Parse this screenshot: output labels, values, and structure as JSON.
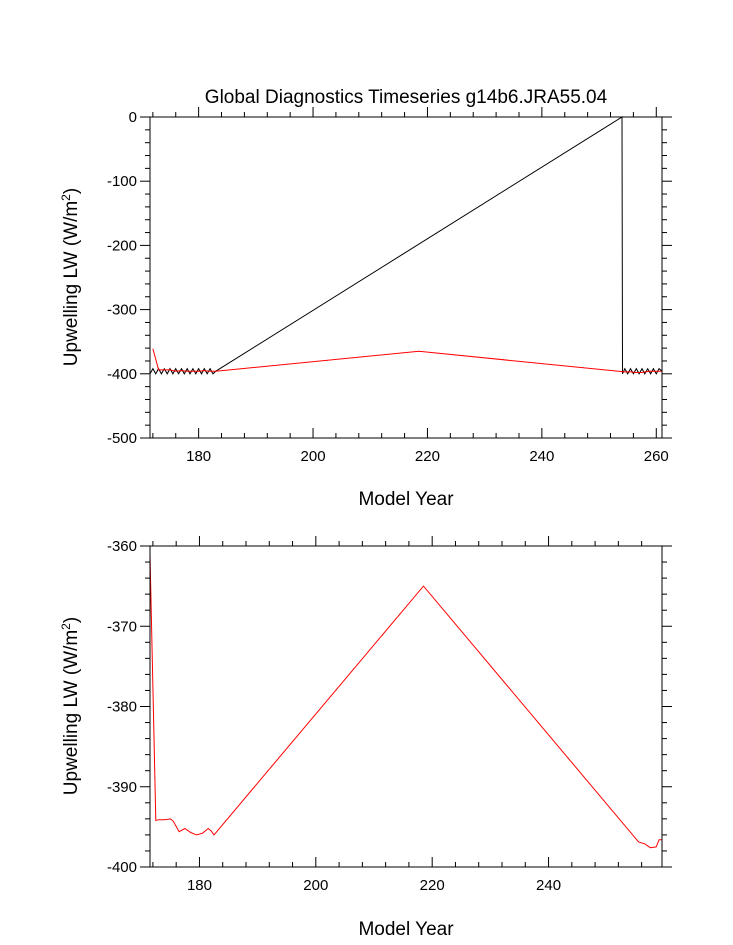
{
  "chart_data": [
    {
      "type": "line",
      "title": "Global Diagnostics Timeseries g14b6.JRA55.04",
      "xlabel": "Model Year",
      "ylabel_main": "Upwelling LW (W/m",
      "ylabel_sup": "2",
      "ylabel_close": ")",
      "xlim": [
        171.5,
        261
      ],
      "ylim": [
        -500,
        0
      ],
      "x_ticks": [
        180,
        200,
        220,
        240,
        260
      ],
      "x_tick_labels": [
        "180",
        "200",
        "220",
        "240",
        "260"
      ],
      "y_ticks": [
        0,
        -100,
        -200,
        -300,
        -400,
        -500
      ],
      "y_tick_labels": [
        "0",
        "-100",
        "-200",
        "-300",
        "-400",
        "-500"
      ],
      "series": [
        {
          "name": "black",
          "color": "#000000",
          "x": [
            171.5,
            172.0,
            172.5,
            173.0,
            173.5,
            174.0,
            174.5,
            175.0,
            175.5,
            176.0,
            176.5,
            177.0,
            177.5,
            178.0,
            178.5,
            179.0,
            179.5,
            180.0,
            180.5,
            181.0,
            181.5,
            182.0,
            182.5,
            183.0,
            254.0,
            254.1,
            254.5,
            255.0,
            255.5,
            256.0,
            256.5,
            257.0,
            257.5,
            258.0,
            258.5,
            259.0,
            259.5,
            260.0,
            260.5,
            261.0
          ],
          "y": [
            -400,
            -392,
            -400,
            -392,
            -400,
            -392,
            -400,
            -392,
            -400,
            -392,
            -400,
            -392,
            -400,
            -392,
            -400,
            -392,
            -400,
            -392,
            -400,
            -392,
            -400,
            -392,
            -400,
            -396,
            0,
            -400,
            -392,
            -400,
            -392,
            -400,
            -392,
            -400,
            -392,
            -400,
            -392,
            -400,
            -392,
            -400,
            -392,
            -396
          ]
        },
        {
          "name": "red",
          "color": "#ff0000",
          "x": [
            172.0,
            173.0,
            174.0,
            175.0,
            176.0,
            177.0,
            178.0,
            179.0,
            180.0,
            181.0,
            182.0,
            183.0,
            218.5,
            254.5,
            255.5,
            256.5,
            257.5,
            258.0,
            259.0,
            260.0,
            261.0
          ],
          "y": [
            -361,
            -394,
            -394,
            -394,
            -396,
            -395,
            -396,
            -396,
            -396,
            -395,
            -396,
            -396,
            -365,
            -397,
            -397,
            -398,
            -398,
            -397,
            -396,
            -396,
            -396
          ]
        }
      ]
    },
    {
      "type": "line",
      "title": "",
      "xlabel": "Model Year",
      "ylabel_main": "Upwelling LW (W/m",
      "ylabel_sup": "2",
      "ylabel_close": ")",
      "xlim": [
        171.5,
        259.5
      ],
      "ylim": [
        -400,
        -360
      ],
      "x_ticks": [
        180,
        200,
        220,
        240
      ],
      "x_tick_labels": [
        "180",
        "200",
        "220",
        "240"
      ],
      "y_ticks": [
        -360,
        -370,
        -380,
        -390,
        -400
      ],
      "y_tick_labels": [
        "-360",
        "-370",
        "-380",
        "-390",
        "-400"
      ],
      "series": [
        {
          "name": "red",
          "color": "#ff0000",
          "x": [
            171.5,
            172.5,
            173.0,
            174.0,
            175.0,
            175.5,
            176.5,
            177.5,
            178.5,
            179.5,
            180.5,
            181.5,
            182.0,
            182.5,
            218.5,
            255.5,
            256.5,
            257.5,
            258.5,
            259.0,
            259.5
          ],
          "y": [
            -361,
            -394.2,
            -394.1,
            -394.1,
            -394.0,
            -394.3,
            -395.6,
            -395.2,
            -395.7,
            -396.0,
            -395.8,
            -395.2,
            -395.5,
            -396.0,
            -365.0,
            -396.9,
            -397.1,
            -397.6,
            -397.5,
            -396.6,
            -396.6
          ]
        }
      ]
    }
  ]
}
